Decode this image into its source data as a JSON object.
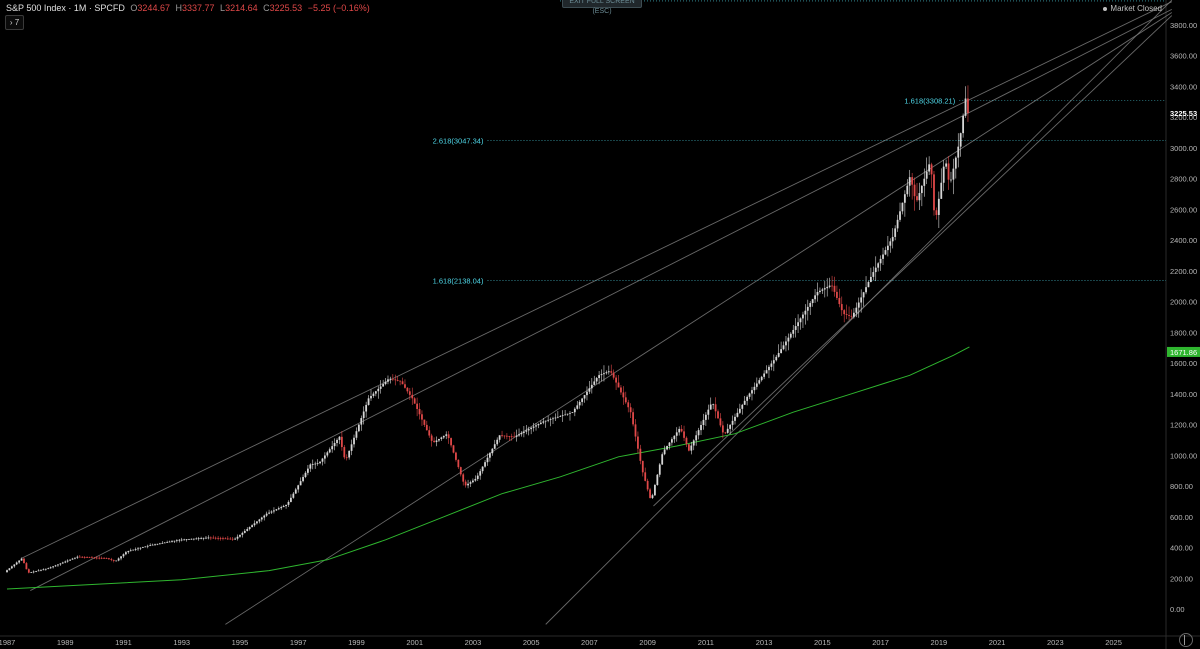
{
  "legend": {
    "symbol": "S&P 500 Index · 1M · SPCFD",
    "open_label": "O",
    "open": "3244.67",
    "high_label": "H",
    "high": "3337.77",
    "low_label": "L",
    "low": "3214.64",
    "close_label": "C",
    "close": "3225.53",
    "change": "−5.25 (−0.16%)"
  },
  "toggle_label": "› 7",
  "status_text": "Market Closed",
  "exit_label": "EXIT FULL SCREEN (ESC)",
  "colors": {
    "background": "#000000",
    "up": "#d6d6d6",
    "down": "#e04848",
    "ma": "#2fb62f",
    "fib": "#4fd7e8",
    "trendline": "#7a7a7a",
    "price_tag": "#ffffff",
    "ma_tag": "#2fb62f"
  },
  "chart_data": {
    "type": "candlestick",
    "title": "S&P 500 Index · 1M · SPCFD",
    "x_range": [
      1987,
      2027
    ],
    "ylim": [
      -100,
      4000
    ],
    "y_ticks": [
      "3800.00",
      "3600.00",
      "3400.00",
      "3200.00",
      "3000.00",
      "2800.00",
      "2600.00",
      "2400.00",
      "2200.00",
      "2000.00",
      "1800.00",
      "1600.00",
      "1400.00",
      "1200.00",
      "1000.00",
      "800.00",
      "600.00",
      "400.00",
      "200.00",
      "0.00"
    ],
    "x_ticks": [
      "1987",
      "1989",
      "1991",
      "1993",
      "1995",
      "1997",
      "1999",
      "2001",
      "2003",
      "2005",
      "2007",
      "2009",
      "2011",
      "2013",
      "2015",
      "2017",
      "2019",
      "2021",
      "2023",
      "2025"
    ],
    "price_path": [
      [
        1987.0,
        240
      ],
      [
        1987.6,
        330
      ],
      [
        1987.8,
        235
      ],
      [
        1988.5,
        265
      ],
      [
        1989.5,
        340
      ],
      [
        1990.5,
        330
      ],
      [
        1990.8,
        310
      ],
      [
        1991.2,
        375
      ],
      [
        1992,
        415
      ],
      [
        1993,
        450
      ],
      [
        1994,
        465
      ],
      [
        1994.9,
        455
      ],
      [
        1995.5,
        545
      ],
      [
        1996,
        620
      ],
      [
        1996.7,
        680
      ],
      [
        1997.5,
        940
      ],
      [
        1997.8,
        950
      ],
      [
        1998.5,
        1120
      ],
      [
        1998.7,
        960
      ],
      [
        1999.5,
        1370
      ],
      [
        2000.2,
        1500
      ],
      [
        2000.6,
        1480
      ],
      [
        2001,
        1370
      ],
      [
        2001.7,
        1080
      ],
      [
        2002.2,
        1140
      ],
      [
        2002.8,
        800
      ],
      [
        2003.2,
        850
      ],
      [
        2004,
        1130
      ],
      [
        2004.5,
        1120
      ],
      [
        2005.5,
        1220
      ],
      [
        2006.5,
        1280
      ],
      [
        2007.4,
        1520
      ],
      [
        2007.8,
        1550
      ],
      [
        2008.5,
        1280
      ],
      [
        2008.9,
        900
      ],
      [
        2009.2,
        700
      ],
      [
        2009.6,
        1020
      ],
      [
        2010.2,
        1180
      ],
      [
        2010.5,
        1030
      ],
      [
        2011.3,
        1350
      ],
      [
        2011.7,
        1130
      ],
      [
        2012.5,
        1380
      ],
      [
        2013.5,
        1640
      ],
      [
        2014.2,
        1850
      ],
      [
        2014.9,
        2060
      ],
      [
        2015.4,
        2110
      ],
      [
        2015.8,
        1920
      ],
      [
        2016.1,
        1900
      ],
      [
        2016.8,
        2180
      ],
      [
        2017.5,
        2420
      ],
      [
        2018.1,
        2820
      ],
      [
        2018.3,
        2640
      ],
      [
        2018.8,
        2920
      ],
      [
        2018.95,
        2500
      ],
      [
        2019.3,
        2940
      ],
      [
        2019.45,
        2750
      ],
      [
        2019.8,
        3050
      ],
      [
        2020.0,
        3320
      ],
      [
        2020.05,
        3225.53
      ]
    ],
    "ma_series": {
      "name": "",
      "value_label": "1671.86",
      "points": [
        [
          1987,
          130
        ],
        [
          1990,
          160
        ],
        [
          1993,
          190
        ],
        [
          1996,
          250
        ],
        [
          1998,
          320
        ],
        [
          2000,
          450
        ],
        [
          2002,
          600
        ],
        [
          2004,
          750
        ],
        [
          2006,
          860
        ],
        [
          2008,
          990
        ],
        [
          2010,
          1060
        ],
        [
          2012,
          1140
        ],
        [
          2014,
          1280
        ],
        [
          2016,
          1400
        ],
        [
          2018,
          1520
        ],
        [
          2019.5,
          1650
        ],
        [
          2020.05,
          1705
        ]
      ]
    },
    "trendlines": [
      {
        "from": [
          1987.5,
          330
        ],
        "to": [
          2027,
          3950
        ]
      },
      {
        "from": [
          1987.8,
          120
        ],
        "to": [
          2027,
          3900
        ]
      },
      {
        "from": [
          1994.5,
          -100
        ],
        "to": [
          2027,
          3880
        ]
      },
      {
        "from": [
          2005.5,
          -100
        ],
        "to": [
          2027,
          3960
        ]
      },
      {
        "from": [
          2009.2,
          670
        ],
        "to": [
          2027,
          3860
        ]
      }
    ],
    "fib_levels": [
      {
        "label": "1.618(3308.21)",
        "value": 3308.21,
        "x_start": 2019.7
      },
      {
        "label": "2.618(3047.34)",
        "value": 3047.34,
        "x_start": 2003.5
      },
      {
        "label": "1.618(2138.04)",
        "value": 2138.04,
        "x_start": 2003.5
      }
    ],
    "top_line": 3955,
    "last_price": "3225.53",
    "ma_label": "1671.86"
  }
}
